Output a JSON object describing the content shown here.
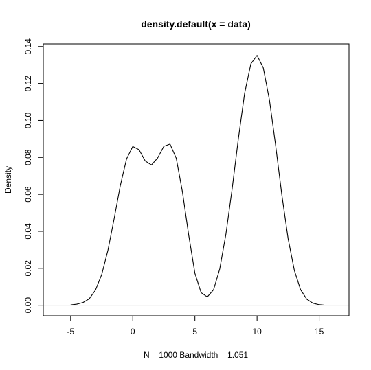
{
  "chart_data": {
    "type": "line",
    "title": "density.default(x = data)",
    "xlabel": "N = 1000   Bandwidth = 1.051",
    "ylabel": "Density",
    "xlim": [
      -7.2,
      17.4
    ],
    "ylim": [
      -0.0057,
      0.1414
    ],
    "x_ticks": [
      -5,
      0,
      5,
      10,
      15
    ],
    "x_tick_labels": [
      "-5",
      "0",
      "5",
      "10",
      "15"
    ],
    "y_ticks": [
      0.0,
      0.02,
      0.04,
      0.06,
      0.08,
      0.1,
      0.12,
      0.14
    ],
    "y_tick_labels": [
      "0.00",
      "0.02",
      "0.04",
      "0.06",
      "0.08",
      "0.10",
      "0.12",
      "0.14"
    ],
    "baseline": {
      "y": 0,
      "color": "#bdbdbd"
    },
    "grid": false,
    "line_color": "#000000",
    "series": [
      {
        "x": [
          -5.0,
          -4.5,
          -4.0,
          -3.5,
          -3.0,
          -2.5,
          -2.0,
          -1.5,
          -1.0,
          -0.5,
          0.0,
          0.5,
          1.0,
          1.5,
          2.0,
          2.5,
          3.0,
          3.5,
          4.0,
          4.5,
          5.0,
          5.5,
          6.0,
          6.5,
          7.0,
          7.5,
          8.0,
          8.5,
          9.0,
          9.5,
          10.0,
          10.5,
          11.0,
          11.5,
          12.0,
          12.5,
          13.0,
          13.5,
          14.0,
          14.5,
          15.0,
          15.4
        ],
        "y": [
          0.0002,
          0.0006,
          0.0015,
          0.0035,
          0.0082,
          0.0166,
          0.0297,
          0.0468,
          0.0648,
          0.0792,
          0.0859,
          0.0842,
          0.0781,
          0.0759,
          0.0797,
          0.086,
          0.0872,
          0.0795,
          0.0612,
          0.038,
          0.0173,
          0.0068,
          0.0045,
          0.0084,
          0.0197,
          0.0387,
          0.0632,
          0.0903,
          0.1147,
          0.1306,
          0.1352,
          0.1285,
          0.1109,
          0.0862,
          0.0594,
          0.036,
          0.0189,
          0.0085,
          0.0033,
          0.0011,
          0.0003,
          0.0001
        ]
      }
    ]
  }
}
